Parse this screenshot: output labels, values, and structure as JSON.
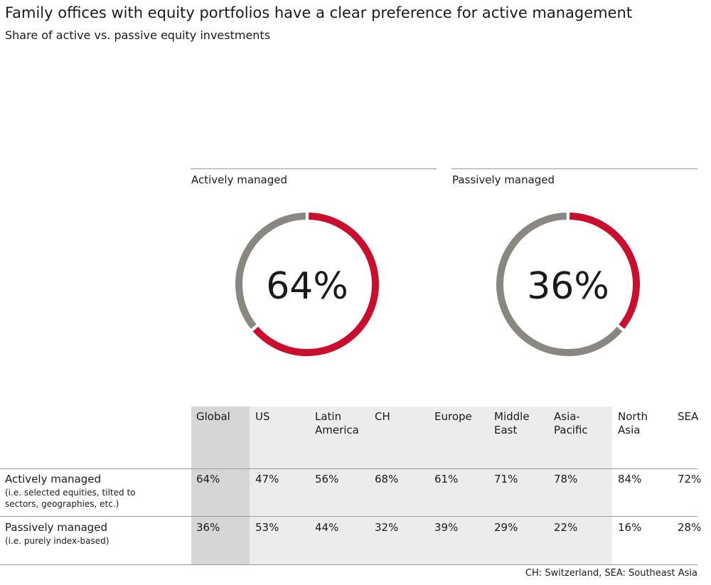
{
  "colors": {
    "accent": "#c8102e",
    "neutral": "#8a8681"
  },
  "chart_data": [
    {
      "type": "pie",
      "title": "Actively managed",
      "center_label": "64%",
      "slices": [
        {
          "name": "Actively managed",
          "value": 64,
          "color": "#c8102e"
        },
        {
          "name": "Remainder",
          "value": 36,
          "color": "#8a8681"
        }
      ]
    },
    {
      "type": "pie",
      "title": "Passively managed",
      "center_label": "36%",
      "slices": [
        {
          "name": "Passively managed",
          "value": 36,
          "color": "#c8102e"
        },
        {
          "name": "Remainder",
          "value": 64,
          "color": "#8a8681"
        }
      ]
    },
    {
      "type": "table",
      "columns": [
        "Global",
        "US",
        "Latin\nAmerica",
        "CH",
        "Europe",
        "Middle\nEast",
        "Asia-\nPacific",
        "North\nAsia",
        "SEA"
      ],
      "rows": [
        {
          "label": "Actively managed",
          "note": "(i.e. selected equities, tilted to sectors, geographies, etc.)",
          "values": [
            "64%",
            "47%",
            "56%",
            "68%",
            "61%",
            "71%",
            "78%",
            "84%",
            "72%"
          ]
        },
        {
          "label": "Passively managed",
          "note": "(i.e. purely index-based)",
          "values": [
            "36%",
            "53%",
            "44%",
            "32%",
            "39%",
            "29%",
            "22%",
            "16%",
            "28%"
          ]
        }
      ]
    }
  ],
  "header": {
    "title": "Family offices with equity portfolios have a clear preference for active management",
    "subtitle": "Share of active vs. passive equity investments"
  },
  "footnote": "CH: Switzerland, SEA: Southeast Asia"
}
